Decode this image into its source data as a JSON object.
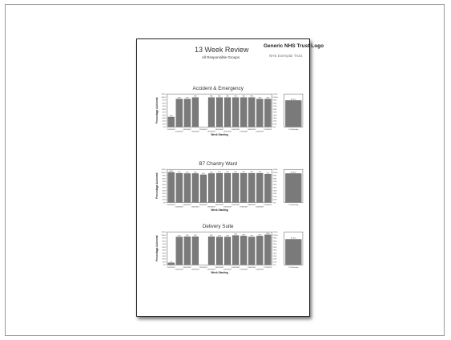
{
  "report": {
    "title": "13 Week Review",
    "subtitle": "All Responsible Groups",
    "logo_text": "Generic NHS Trust Logo",
    "trust_name": "NHS Exemplar Trust"
  },
  "colors": {
    "bar": "#7a7a7a",
    "bar_edge": "#333333",
    "avg_bar": "#7a7a7a"
  },
  "chart_data": [
    {
      "type": "bar",
      "title": "Accident & Emergency",
      "xlabel": "Week Starting",
      "ylabel": "Percentage Achieved",
      "ylim": [
        0,
        110
      ],
      "yticks": [
        "0%",
        "10%",
        "20%",
        "30%",
        "40%",
        "50%",
        "60%",
        "70%",
        "80%",
        "90%",
        "100%",
        "110%"
      ],
      "categories": [
        "25/03/2007",
        "01/04/2007",
        "08/04/2007",
        "15/04/2007",
        "22/04/2007",
        "29/04/2007",
        "06/05/2007",
        "13/05/2007",
        "20/05/2007",
        "27/05/2007",
        "03/06/2007",
        "10/06/2007",
        "17/06/2007"
      ],
      "values": [
        33,
        93,
        93,
        98,
        null,
        98,
        98,
        98,
        98,
        98,
        98,
        93,
        93
      ],
      "value_labels": [
        "33%",
        "93%",
        "93%",
        "98%",
        "",
        "98%",
        "98%",
        "98%",
        "98%",
        "98%",
        "98%",
        "93%",
        "93%"
      ],
      "summary_label": "13 Week Avg",
      "summary_value": 88,
      "summary_value_label": "88.10%"
    },
    {
      "type": "bar",
      "title": "B7 Chantry Ward",
      "xlabel": "Week Starting",
      "ylabel": "Percentage Achieved",
      "ylim": [
        0,
        110
      ],
      "yticks": [
        "0%",
        "10%",
        "20%",
        "30%",
        "40%",
        "50%",
        "60%",
        "70%",
        "80%",
        "90%",
        "100%",
        "110%"
      ],
      "categories": [
        "25/03/2007",
        "01/04/2007",
        "08/04/2007",
        "15/04/2007",
        "22/04/2007",
        "29/04/2007",
        "06/05/2007",
        "13/05/2007",
        "20/05/2007",
        "27/05/2007",
        "03/06/2007",
        "10/06/2007",
        "17/06/2007"
      ],
      "values": [
        100,
        97,
        96,
        96,
        92,
        96,
        97,
        97,
        97,
        97,
        97,
        97,
        94
      ],
      "value_labels": [
        "100%",
        "97%",
        "96%",
        "96%",
        "92%",
        "96%",
        "97%",
        "97%",
        "97%",
        "97%",
        "97%",
        "97%",
        "94%"
      ],
      "summary_label": "13 Week Avg",
      "summary_value": 96,
      "summary_value_label": "96.40%"
    },
    {
      "type": "bar",
      "title": "Delivery Suite",
      "xlabel": "Week Starting",
      "ylabel": "Percentage Achieved",
      "ylim": [
        0,
        110
      ],
      "yticks": [
        "0%",
        "10%",
        "20%",
        "30%",
        "40%",
        "50%",
        "60%",
        "70%",
        "80%",
        "90%",
        "100%",
        "110%"
      ],
      "categories": [
        "25/03/2007",
        "01/04/2007",
        "08/04/2007",
        "15/04/2007",
        "22/04/2007",
        "29/04/2007",
        "06/05/2007",
        "13/05/2007",
        "20/05/2007",
        "27/05/2007",
        "03/06/2007",
        "10/06/2007",
        "17/06/2007"
      ],
      "values": [
        7,
        93,
        94,
        94,
        null,
        94,
        93,
        93,
        98,
        96,
        93,
        96,
        100
      ],
      "value_labels": [
        "7%",
        "93%",
        "94%",
        "94%",
        "",
        "94%",
        "93%",
        "93%",
        "98%",
        "96%",
        "93%",
        "96%",
        "100%"
      ],
      "summary_label": "13 Week Avg",
      "summary_value": 85,
      "summary_value_label": "85.40%"
    }
  ]
}
